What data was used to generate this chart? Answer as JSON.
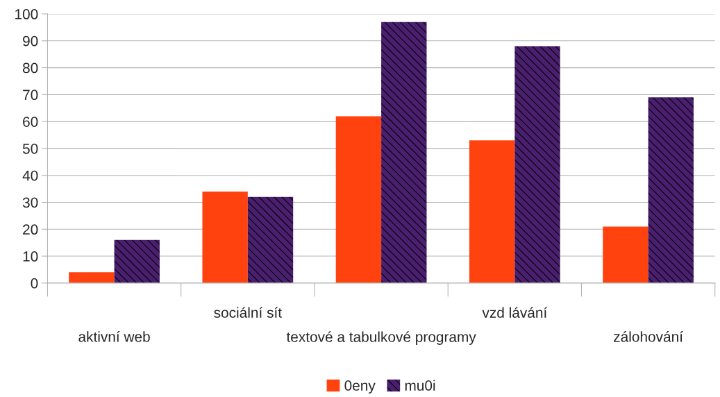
{
  "chart_data": {
    "type": "bar",
    "categories": [
      "aktivní web",
      "sociální sít",
      "textové a tabulkové programy",
      "vzd lávání",
      "zálohování"
    ],
    "series": [
      {
        "name": "0eny",
        "color": "#ff420e",
        "values": [
          4,
          34,
          62,
          53,
          21
        ]
      },
      {
        "name": "mu0i",
        "color": "#4b1f6f",
        "values": [
          16,
          32,
          97,
          88,
          69
        ]
      }
    ],
    "ylim": [
      0,
      100
    ],
    "yticks": [
      0,
      10,
      20,
      30,
      40,
      50,
      60,
      70,
      80,
      90,
      100
    ],
    "grid": "y",
    "legend": "bottom"
  }
}
